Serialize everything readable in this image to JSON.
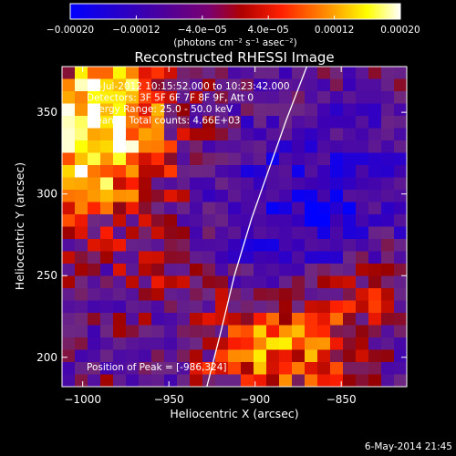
{
  "chart_data": {
    "type": "heatmap",
    "title": "Reconstructed RHESSI Image",
    "xlabel": "Heliocentric X (arcsec)",
    "ylabel": "Heliocentric Y (arcsec)",
    "xlim": [
      -1012,
      -812
    ],
    "ylim": [
      182,
      378
    ],
    "xticks": [
      -1000,
      -950,
      -900,
      -850
    ],
    "xtick_labels": [
      "−1000",
      "−950",
      "−900",
      "−850"
    ],
    "yticks": [
      200,
      250,
      300,
      350
    ],
    "ytick_labels": [
      "200",
      "250",
      "300",
      "350"
    ],
    "colorbar": {
      "min": -0.0002,
      "max": 0.0002,
      "ticks": [
        -0.0002,
        -0.00012,
        -4e-05,
        4e-05,
        0.00012,
        0.0002
      ],
      "tick_labels": [
        "−0.00020",
        "−0.00012",
        "−4.0e−05",
        "4.0e−05",
        "0.00012",
        "0.00020"
      ],
      "unit_label": "(photons cm⁻² s⁻¹ asec⁻²)",
      "colors": [
        "#0000ff",
        "#4b0096",
        "#960000",
        "#ff0000",
        "#ff8200",
        "#ffff00",
        "#ffffff"
      ]
    },
    "annotations": [
      "28-Jul-2012 10:15:52.000 to 10:23:42.000",
      "Detectors: 3F 5F 6F 7F 8F 9F, Att 0",
      "Energy Range: 25.0 - 50.0 keV",
      "Clean     Total counts: 4.66E+03"
    ],
    "peak_label": "Position of Peak = [-986,324]",
    "peak": [
      -986,
      324
    ],
    "limb_curve": [
      [
        -928,
        182
      ],
      [
        -920,
        215
      ],
      [
        -912,
        250
      ],
      [
        -902,
        285
      ],
      [
        -892,
        315
      ],
      [
        -882,
        345
      ],
      [
        -870,
        378
      ]
    ],
    "footer_date": "6-May-2014 21:45"
  }
}
